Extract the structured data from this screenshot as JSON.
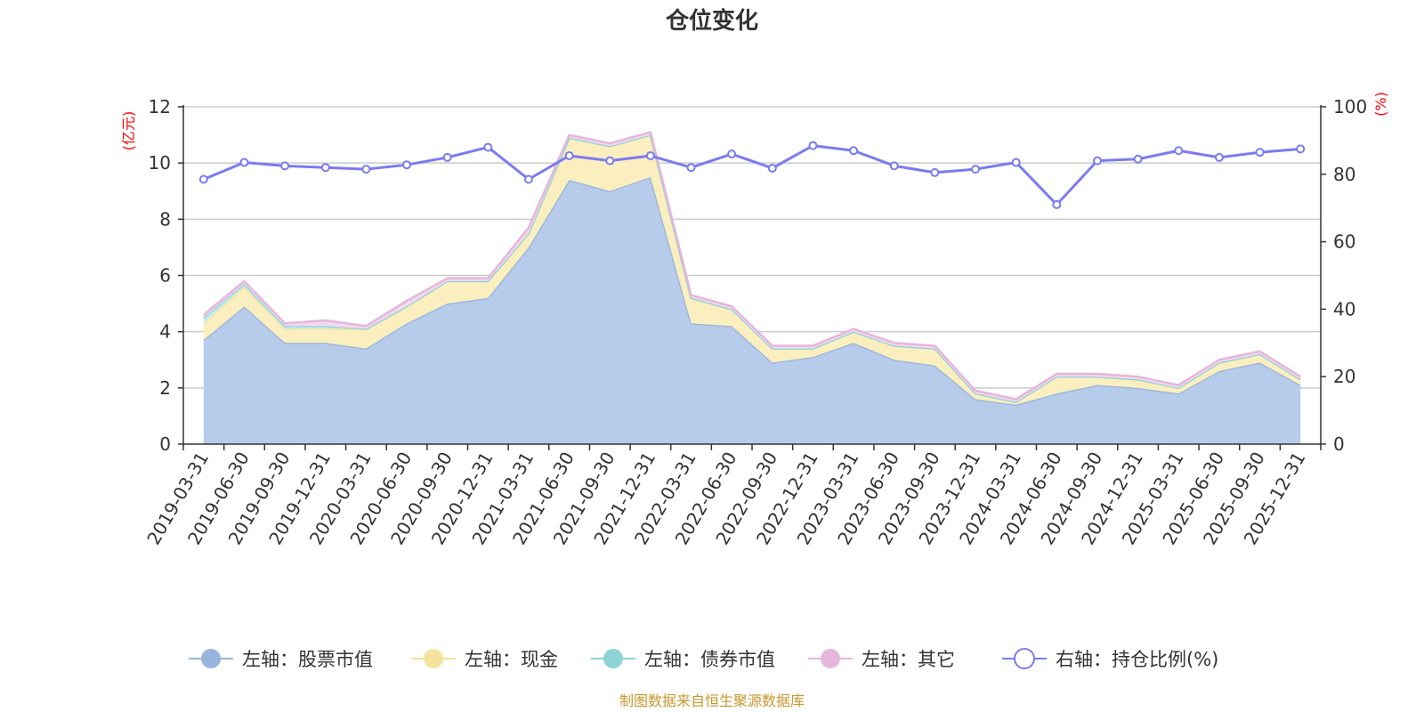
{
  "chart_data": {
    "type": "area",
    "title": "仓位变化",
    "source_note": "制图数据来自恒生聚源数据库",
    "left_axis": {
      "unit": "(亿元)",
      "min": 0,
      "max": 12,
      "ticks": [
        "0",
        "2",
        "4",
        "6",
        "8",
        "10",
        "12"
      ]
    },
    "right_axis": {
      "unit": "(%)",
      "min": 0,
      "max": 100,
      "ticks": [
        "0",
        "20",
        "40",
        "60",
        "80",
        "100"
      ]
    },
    "categories": [
      "2019-03-31",
      "2019-06-30",
      "2019-09-30",
      "2019-12-31",
      "2020-03-31",
      "2020-06-30",
      "2020-09-30",
      "2020-12-31",
      "2021-03-31",
      "2021-06-30",
      "2021-09-30",
      "2021-12-31",
      "2022-03-31",
      "2022-06-30",
      "2022-09-30",
      "2022-12-31",
      "2023-03-31",
      "2023-06-30",
      "2023-09-30",
      "2023-12-31",
      "2024-03-31",
      "2024-06-30",
      "2024-09-30",
      "2024-12-31",
      "2025-03-31",
      "2025-06-30",
      "2025-09-30",
      "2025-12-31"
    ],
    "series": [
      {
        "name": "左轴：股票市值",
        "axis": "left",
        "kind": "area",
        "color": "#96b4dc",
        "fill": "#b7cbea",
        "values": [
          3.7,
          4.9,
          3.6,
          3.6,
          3.4,
          4.3,
          5.0,
          5.2,
          7.0,
          9.4,
          9.0,
          9.5,
          4.3,
          4.2,
          2.9,
          3.1,
          3.6,
          3.0,
          2.8,
          1.6,
          1.4,
          1.8,
          2.1,
          2.0,
          1.8,
          2.6,
          2.9,
          2.1
        ]
      },
      {
        "name": "左轴：现金",
        "axis": "left",
        "kind": "area",
        "color": "#f5e39d",
        "fill": "#fbefbf",
        "values": [
          0.6,
          0.7,
          0.5,
          0.5,
          0.7,
          0.6,
          0.8,
          0.6,
          0.5,
          1.5,
          1.6,
          1.5,
          0.9,
          0.6,
          0.5,
          0.3,
          0.4,
          0.5,
          0.6,
          0.2,
          0.1,
          0.6,
          0.3,
          0.3,
          0.2,
          0.3,
          0.3,
          0.2
        ]
      },
      {
        "name": "左轴：债券市值",
        "axis": "left",
        "kind": "area",
        "color": "#8dd3d5",
        "fill": "#c9ecec",
        "values": [
          0.2,
          0.1,
          0.1,
          0.1,
          0.0,
          0.0,
          0.0,
          0.0,
          0.0,
          0.0,
          0.0,
          0.0,
          0.0,
          0.0,
          0.0,
          0.0,
          0.0,
          0.0,
          0.0,
          0.0,
          0.0,
          0.0,
          0.0,
          0.0,
          0.0,
          0.0,
          0.0,
          0.0
        ]
      },
      {
        "name": "左轴：其它",
        "axis": "left",
        "kind": "area",
        "color": "#e6b6dc",
        "fill": "#f3d9ee",
        "values": [
          0.1,
          0.1,
          0.1,
          0.2,
          0.1,
          0.2,
          0.1,
          0.1,
          0.2,
          0.1,
          0.1,
          0.1,
          0.1,
          0.1,
          0.1,
          0.1,
          0.1,
          0.1,
          0.1,
          0.1,
          0.1,
          0.1,
          0.1,
          0.1,
          0.1,
          0.1,
          0.1,
          0.1
        ]
      },
      {
        "name": "右轴：持仓比例(%)",
        "axis": "right",
        "kind": "line",
        "color": "#7b7bf0",
        "values": [
          78.5,
          83.5,
          82.5,
          82.0,
          81.5,
          82.8,
          85.0,
          88.0,
          78.5,
          85.5,
          84.0,
          85.5,
          82.0,
          86.0,
          81.8,
          88.5,
          87.0,
          82.5,
          80.5,
          81.5,
          83.5,
          71.0,
          84.0,
          84.5,
          87.0,
          85.0,
          86.5,
          87.5
        ]
      }
    ]
  }
}
